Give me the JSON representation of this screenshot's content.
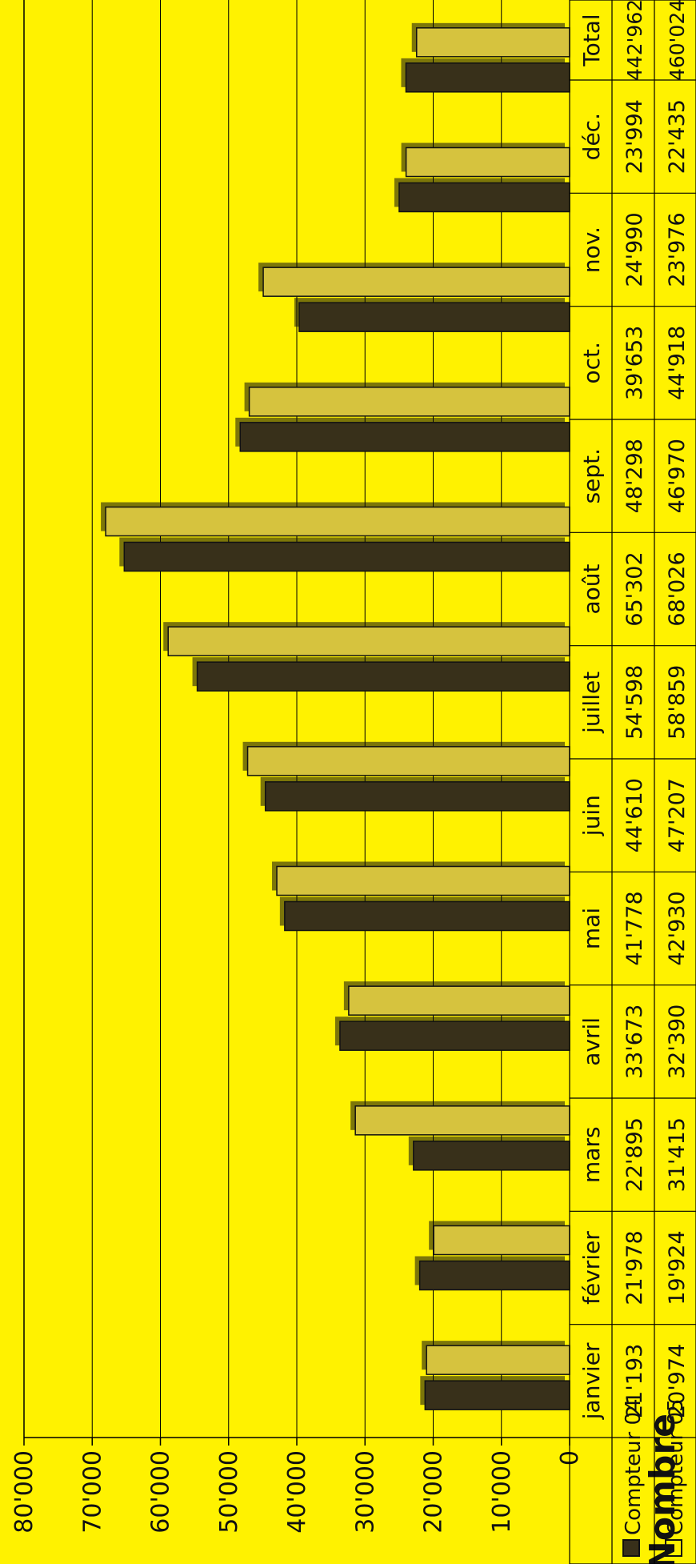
{
  "colors": {
    "background": "#FFF200",
    "compteur04": "#38301a",
    "compteur05": "#d6c33e",
    "grid": "#000000"
  },
  "chart_data": {
    "type": "bar",
    "title": "",
    "xlabel": "",
    "ylabel": "Nombre",
    "ylim": [
      0,
      80000
    ],
    "yticks": [
      {
        "value": 0,
        "label": "0"
      },
      {
        "value": 10000,
        "label": "10'000"
      },
      {
        "value": 20000,
        "label": "20'000"
      },
      {
        "value": 30000,
        "label": "30'000"
      },
      {
        "value": 40000,
        "label": "40'000"
      },
      {
        "value": 50000,
        "label": "50'000"
      },
      {
        "value": 60000,
        "label": "60'000"
      },
      {
        "value": 70000,
        "label": "70'000"
      },
      {
        "value": 80000,
        "label": "80'000"
      }
    ],
    "grid": true,
    "orientation": "rotated-90-ccw",
    "legend": "left (in data table)",
    "categories": [
      "janvier",
      "février",
      "mars",
      "avril",
      "mai",
      "juin",
      "juillet",
      "août",
      "sept.",
      "oct.",
      "nov.",
      "déc."
    ],
    "table_total_header": "Total",
    "series": [
      {
        "name": "Compteur 04",
        "color": "#38301a",
        "values": [
          21193,
          21978,
          22895,
          33673,
          41778,
          44610,
          54598,
          65302,
          48298,
          39653,
          24990,
          23994
        ],
        "labels": [
          "21'193",
          "21'978",
          "22'895",
          "33'673",
          "41'778",
          "44'610",
          "54'598",
          "65'302",
          "48'298",
          "39'653",
          "24'990",
          "23'994"
        ],
        "total": "442'962"
      },
      {
        "name": "Compteur 05",
        "color": "#d6c33e",
        "values": [
          20974,
          19924,
          31415,
          32390,
          42930,
          47207,
          58859,
          68026,
          46970,
          44918,
          23976,
          22435
        ],
        "labels": [
          "20'974",
          "19'924",
          "31'415",
          "32'390",
          "42'930",
          "47'207",
          "58'859",
          "68'026",
          "46'970",
          "44'918",
          "23'976",
          "22'435"
        ],
        "total": "460'024"
      }
    ]
  }
}
